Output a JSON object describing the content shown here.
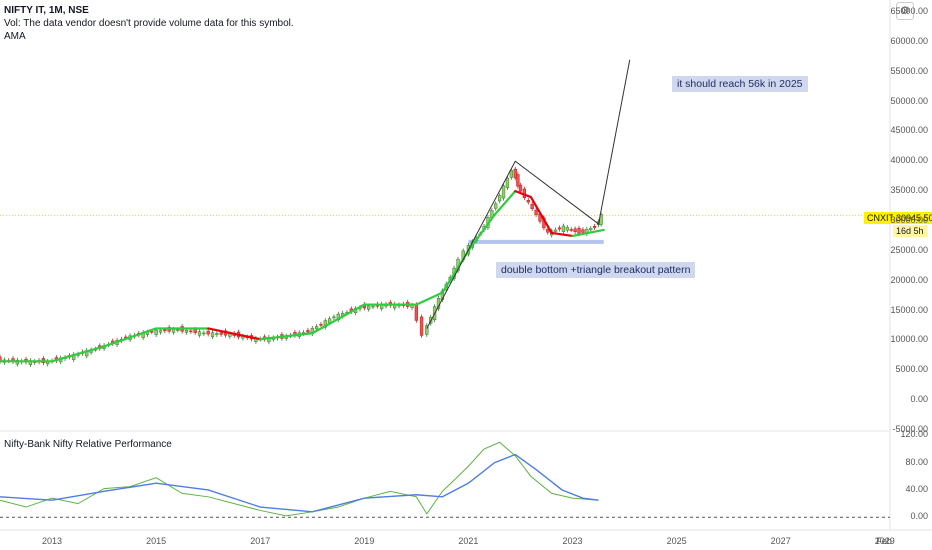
{
  "header": {
    "symbol": "NIFTY IT, 1M, NSE",
    "vol_note": "Vol: The data vendor doesn't provide volume data for this symbol.",
    "indicator": "AMA"
  },
  "sub_panel": {
    "title": "Nifty-Bank Nifty Relative Performance"
  },
  "annotations": {
    "target": "it should reach 56k in 2025",
    "pattern": "double bottom +triangle breakout pattern"
  },
  "price_tag": {
    "symbol": "CNXIT",
    "price": "30945.50",
    "countdown": "16d 5h"
  },
  "settings_icon": "gear-icon",
  "colors": {
    "up": "#26a69a",
    "down": "#ef5350",
    "ama_up": "#2ecc40",
    "ama_down": "#e8000b",
    "rel_line": "#5db344",
    "rel_ma": "#4f7ee0",
    "support": "#b3c4f0"
  },
  "chart_data": [
    {
      "type": "candlestick",
      "x_axis": {
        "ticks": [
          "2013",
          "2015",
          "2017",
          "2019",
          "2021",
          "2023",
          "2025",
          "2027",
          "2029",
          "Feb"
        ]
      },
      "y_axis": {
        "ticks": [
          "65000.00",
          "60000.00",
          "55000.00",
          "50000.00",
          "45000.00",
          "40000.00",
          "35000.00",
          "30000.00",
          "25000.00",
          "20000.00",
          "15000.00",
          "10000.00",
          "5000.00",
          "0.00",
          "-5000.00"
        ],
        "range": [
          -5000,
          67000
        ]
      },
      "series": [
        {
          "points": [
            [
              2012.0,
              6700
            ],
            [
              2012.5,
              6500
            ],
            [
              2013.0,
              6400
            ],
            [
              2013.5,
              7500
            ],
            [
              2014.0,
              8800
            ],
            [
              2014.5,
              10500
            ],
            [
              2015.0,
              11500
            ],
            [
              2015.5,
              11800
            ],
            [
              2016.0,
              11200
            ],
            [
              2016.5,
              11000
            ],
            [
              2017.0,
              10200
            ],
            [
              2017.5,
              10500
            ],
            [
              2018.0,
              11500
            ],
            [
              2018.5,
              14000
            ],
            [
              2019.0,
              15500
            ],
            [
              2019.5,
              16000
            ],
            [
              2020.0,
              15800
            ],
            [
              2020.2,
              11000
            ],
            [
              2020.5,
              17000
            ],
            [
              2020.8,
              22000
            ],
            [
              2021.0,
              25000
            ],
            [
              2021.3,
              28000
            ],
            [
              2021.6,
              33000
            ],
            [
              2021.9,
              38500
            ],
            [
              2022.0,
              36000
            ],
            [
              2022.3,
              32000
            ],
            [
              2022.6,
              28000
            ],
            [
              2022.9,
              29000
            ],
            [
              2023.2,
              28000
            ],
            [
              2023.5,
              29000
            ],
            [
              2023.6,
              30945.5
            ]
          ]
        }
      ],
      "ama": [
        [
          2012.0,
          6500
        ],
        [
          2013.0,
          6500
        ],
        [
          2014.0,
          9000
        ],
        [
          2015.0,
          12000
        ],
        [
          2016.0,
          12000
        ],
        [
          2017.0,
          10200
        ],
        [
          2018.0,
          11200
        ],
        [
          2019.0,
          16000
        ],
        [
          2020.0,
          16000
        ],
        [
          2020.5,
          18000
        ],
        [
          2021.0,
          25000
        ],
        [
          2021.5,
          31000
        ],
        [
          2021.9,
          35000
        ],
        [
          2022.2,
          34000
        ],
        [
          2022.6,
          28000
        ],
        [
          2023.0,
          27500
        ],
        [
          2023.6,
          28500
        ]
      ],
      "drawings": {
        "triangle": [
          [
            2020.2,
            12000
          ],
          [
            2021.9,
            40000
          ],
          [
            2023.5,
            29500
          ],
          [
            2024.1,
            57000
          ]
        ],
        "support_level": 26500
      },
      "last_price": 30945.5
    },
    {
      "type": "line",
      "y_axis": {
        "ticks": [
          "120.00",
          "80.00",
          "40.00",
          "0.00"
        ],
        "range": [
          -4,
          125
        ]
      },
      "series": [
        {
          "points": [
            [
              2012.0,
              25
            ],
            [
              2012.5,
              15
            ],
            [
              2013.0,
              28
            ],
            [
              2013.5,
              20
            ],
            [
              2014.0,
              42
            ],
            [
              2014.5,
              45
            ],
            [
              2015.0,
              58
            ],
            [
              2015.5,
              35
            ],
            [
              2016.0,
              30
            ],
            [
              2016.5,
              20
            ],
            [
              2017.0,
              10
            ],
            [
              2017.5,
              2
            ],
            [
              2018.0,
              8
            ],
            [
              2018.5,
              15
            ],
            [
              2019.0,
              28
            ],
            [
              2019.5,
              38
            ],
            [
              2020.0,
              30
            ],
            [
              2020.2,
              5
            ],
            [
              2020.5,
              38
            ],
            [
              2020.8,
              60
            ],
            [
              2021.0,
              75
            ],
            [
              2021.3,
              100
            ],
            [
              2021.6,
              110
            ],
            [
              2021.9,
              90
            ],
            [
              2022.2,
              60
            ],
            [
              2022.6,
              35
            ],
            [
              2023.0,
              28
            ],
            [
              2023.5,
              25
            ]
          ]
        },
        {
          "points": [
            [
              2012.0,
              30
            ],
            [
              2013.0,
              25
            ],
            [
              2014.0,
              38
            ],
            [
              2015.0,
              50
            ],
            [
              2016.0,
              40
            ],
            [
              2017.0,
              15
            ],
            [
              2018.0,
              8
            ],
            [
              2019.0,
              28
            ],
            [
              2020.0,
              33
            ],
            [
              2020.5,
              30
            ],
            [
              2021.0,
              50
            ],
            [
              2021.5,
              80
            ],
            [
              2021.9,
              92
            ],
            [
              2022.3,
              70
            ],
            [
              2022.8,
              40
            ],
            [
              2023.2,
              28
            ],
            [
              2023.5,
              25
            ]
          ]
        }
      ]
    }
  ]
}
